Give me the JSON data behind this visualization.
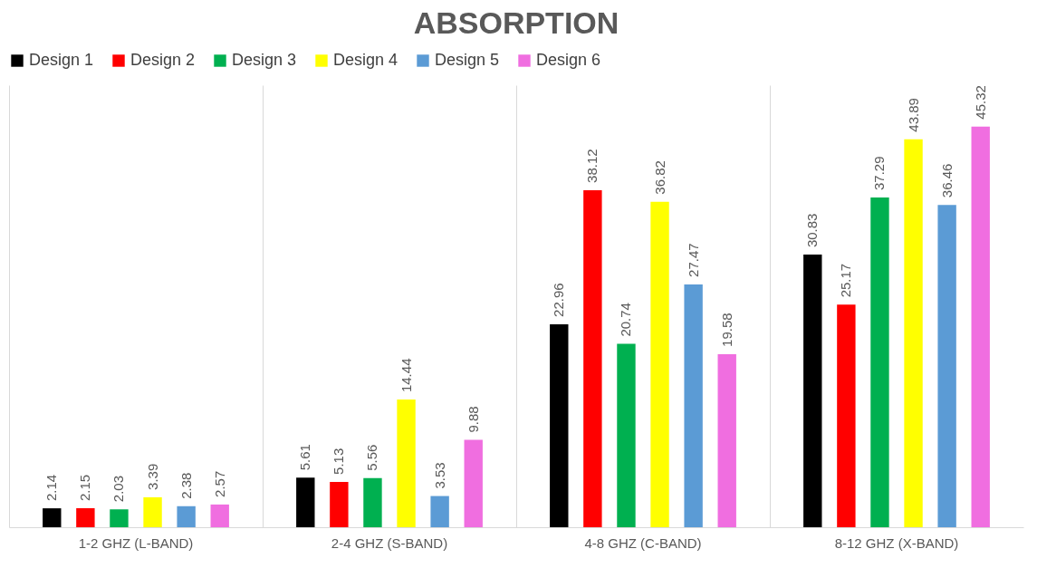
{
  "chart_data": {
    "type": "bar",
    "title": "ABSORPTION",
    "categories": [
      "1-2 GHZ (L-BAND)",
      "2-4 GHZ (S-BAND)",
      "4-8 GHZ (C-BAND)",
      "8-12 GHZ (X-BAND)"
    ],
    "series": [
      {
        "name": "Design 1",
        "color": "#000000",
        "values": [
          2.14,
          5.61,
          22.96,
          30.83
        ]
      },
      {
        "name": "Design 2",
        "color": "#ff0000",
        "values": [
          2.15,
          5.13,
          38.12,
          25.17
        ]
      },
      {
        "name": "Design 3",
        "color": "#00b050",
        "values": [
          2.03,
          5.56,
          20.74,
          37.29
        ]
      },
      {
        "name": "Design 4",
        "color": "#ffff00",
        "values": [
          3.39,
          14.44,
          36.82,
          43.89
        ]
      },
      {
        "name": "Design 5",
        "color": "#5b9bd5",
        "values": [
          2.38,
          3.53,
          27.47,
          36.46
        ]
      },
      {
        "name": "Design 6",
        "color": "#f06ee0",
        "values": [
          2.57,
          9.88,
          19.58,
          45.32
        ]
      }
    ],
    "data_labels": true,
    "grid": "x",
    "legend": "top"
  }
}
